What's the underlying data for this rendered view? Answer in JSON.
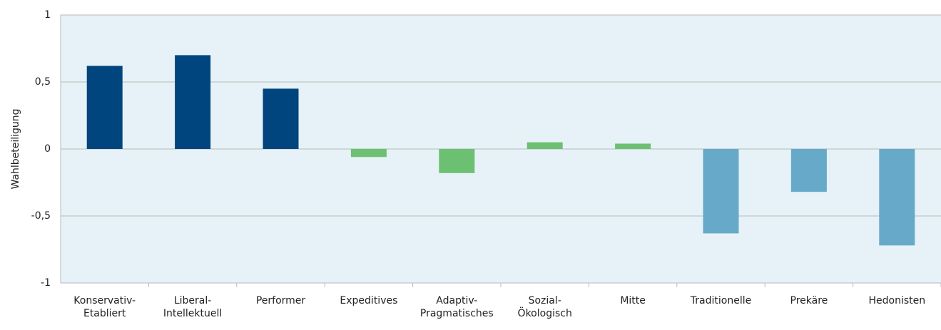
{
  "chart_data": {
    "type": "bar",
    "y_label": "Wahlbeteiligung",
    "categories": [
      "Konservativ-\nEtabliert",
      "Liberal-\nIntellektuell",
      "Performer",
      "Expeditives",
      "Adaptiv-\nPragmatisches",
      "Sozial-\nÖkologisch",
      "Mitte",
      "Traditionelle",
      "Prekäre",
      "Hedonisten"
    ],
    "values": [
      0.62,
      0.7,
      0.45,
      -0.06,
      -0.18,
      0.05,
      0.04,
      -0.63,
      -0.32,
      -0.72
    ],
    "colors": [
      "#00457e",
      "#00457e",
      "#00457e",
      "#6cc072",
      "#6cc072",
      "#6cc072",
      "#6cc072",
      "#67a9c9",
      "#67a9c9",
      "#67a9c9"
    ],
    "ylim": [
      -1,
      1
    ],
    "yticks": [
      -1,
      {
        "value": -0.5,
        "label": "-0,5"
      },
      0,
      {
        "value": 0.5,
        "label": "0,5"
      },
      1
    ],
    "grid": true
  }
}
